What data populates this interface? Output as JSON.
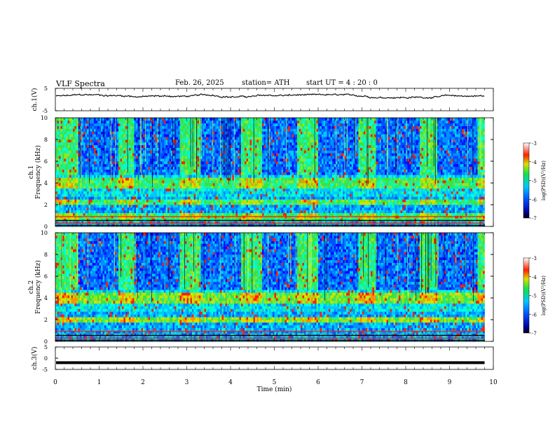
{
  "header": {
    "title": "VLF  Spectra",
    "date": "Feb. 26, 2025",
    "station": "station= ATH",
    "start_ut": "start  UT  =   4  : 20 : 0"
  },
  "chart_data": [
    {
      "type": "line",
      "name": "ch1-voltage",
      "ylabel": "ch.1(V)",
      "ytick_labels": [
        "5",
        "-5"
      ],
      "ylim": [
        -5,
        5
      ],
      "xlim": [
        0,
        10
      ],
      "series": [
        {
          "x_end_min": 9.8,
          "level_v": 1.5,
          "noise_v": 0.8
        }
      ]
    },
    {
      "type": "heatmap",
      "name": "ch1-spectrogram",
      "ylabel": "ch.1\nFrequency  (kHz)",
      "ytick_labels": [
        "0",
        "2",
        "4",
        "6",
        "8",
        "10"
      ],
      "ylim": [
        0,
        10
      ],
      "xlim": [
        0,
        9.8
      ],
      "colorbar": {
        "label": "log(PSD)(V²/Hz)",
        "range": [
          -7,
          -3
        ],
        "tick_labels": [
          "-3",
          "-4",
          "-5",
          "-6",
          "-7"
        ]
      },
      "quiet_intervals_min": [
        [
          0.5,
          1.4
        ],
        [
          1.8,
          2.8
        ],
        [
          3.3,
          4.2
        ],
        [
          4.7,
          5.5
        ],
        [
          6.0,
          6.9
        ],
        [
          7.3,
          8.3
        ],
        [
          8.7,
          9.6
        ]
      ],
      "emission_bands_khz": [
        [
          3.5,
          4.5
        ],
        [
          2.0,
          2.6
        ],
        [
          0.4,
          1.4
        ]
      ]
    },
    {
      "type": "heatmap",
      "name": "ch2-spectrogram",
      "ylabel": "ch.2\nFrequency  (kHz)",
      "ytick_labels": [
        "0",
        "2",
        "4",
        "6",
        "8",
        "10"
      ],
      "ylim": [
        0,
        10
      ],
      "xlim": [
        0,
        9.8
      ],
      "colorbar": {
        "label": "log(PSD)(V²/Hz)",
        "range": [
          -7,
          -3
        ],
        "tick_labels": [
          "-3",
          "-4",
          "-5",
          "-6",
          "-7"
        ]
      },
      "quiet_intervals_min": [
        [
          0.5,
          1.4
        ],
        [
          1.8,
          2.8
        ],
        [
          3.3,
          4.2
        ],
        [
          4.7,
          5.5
        ],
        [
          6.0,
          6.9
        ],
        [
          7.3,
          8.3
        ],
        [
          8.7,
          9.6
        ]
      ],
      "emission_bands_khz": [
        [
          3.5,
          4.5
        ],
        [
          1.8,
          2.3
        ],
        [
          4.4,
          4.6
        ]
      ]
    },
    {
      "type": "line",
      "name": "ch3-voltage",
      "ylabel": "ch.3(V)",
      "ytick_labels": [
        "5",
        "0",
        "-5"
      ],
      "ylim": [
        -5,
        5
      ],
      "xlim": [
        0,
        10
      ],
      "series": [
        {
          "x_end_min": 9.8,
          "level_v": -2.0
        }
      ]
    }
  ],
  "xaxis": {
    "label": "Time  (min)",
    "ticks": [
      "0",
      "1",
      "2",
      "3",
      "4",
      "5",
      "6",
      "7",
      "8",
      "9",
      "10"
    ]
  }
}
